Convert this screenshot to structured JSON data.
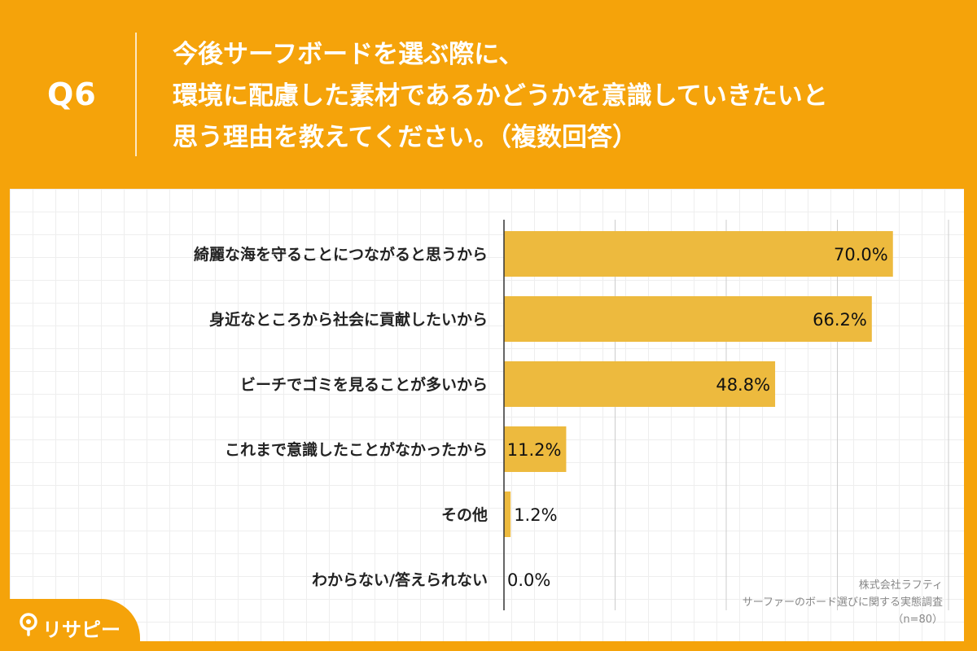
{
  "header": {
    "q_number": "Q6",
    "question_lines": [
      "今後サーフボードを選ぶ際に、",
      "環境に配慮した素材であるかどうかを意識していきたいと",
      "思う理由を教えてください。（複数回答）"
    ]
  },
  "chart_data": {
    "type": "bar",
    "orientation": "horizontal",
    "categories": [
      "綺麗な海を守ることにつながると思うから",
      "身近なところから社会に貢献したいから",
      "ビーチでゴミを見ることが多いから",
      "これまで意識したことがなかったから",
      "その他",
      "わからない/答えられない"
    ],
    "values": [
      70.0,
      66.2,
      48.8,
      11.2,
      1.2,
      0.0
    ],
    "value_labels": [
      "70.0%",
      "66.2%",
      "48.8%",
      "11.2%",
      "1.2%",
      "0.0%"
    ],
    "xlim": [
      0,
      80
    ],
    "grid_step": 20,
    "bar_color": "#EDBA3E"
  },
  "source": {
    "lines": [
      "株式会社ラフティ",
      "サーファーのボード選びに関する実態調査",
      "（n=80）"
    ]
  },
  "logo": {
    "text": "リサピー"
  },
  "colors": {
    "background": "#F5A30A",
    "panel": "#FFFFFF",
    "gridline": "#CCCCCC",
    "axis": "#333333"
  }
}
